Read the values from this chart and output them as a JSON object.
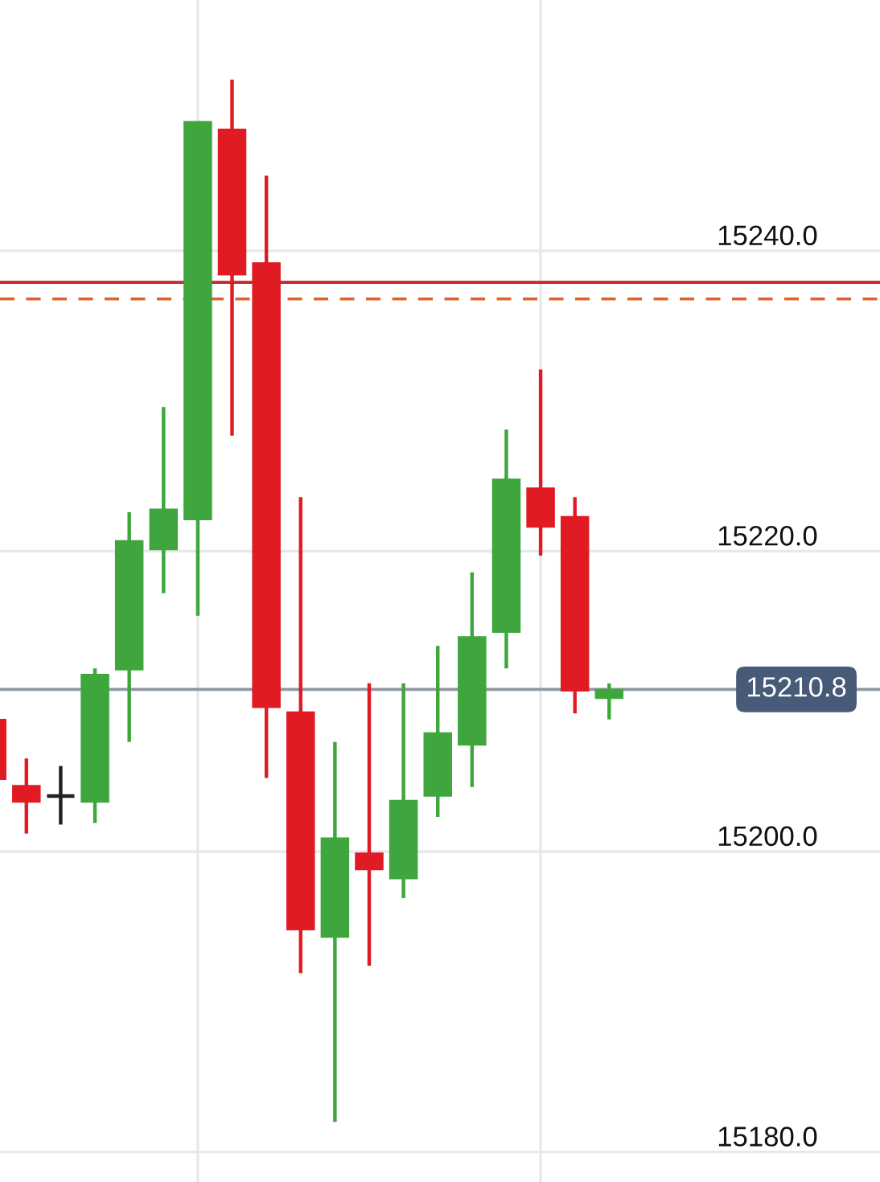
{
  "chart_data": {
    "type": "candlestick",
    "categories": [
      null,
      null,
      null,
      null,
      null,
      null,
      null,
      null,
      null,
      null,
      null,
      null,
      null,
      null,
      null,
      null,
      null,
      null,
      null
    ],
    "ohlc": [
      [
        15208.8,
        15208.8,
        15204.8,
        15204.8
      ],
      [
        15204.4,
        15206.2,
        15201.2,
        15203.3
      ],
      [
        15203.7,
        15205.7,
        15201.8,
        15203.7
      ],
      [
        15203.3,
        15212.2,
        15201.9,
        15211.8
      ],
      [
        15212.1,
        15222.6,
        15207.3,
        15220.7
      ],
      [
        15220.1,
        15229.6,
        15217.2,
        15222.8
      ],
      [
        15222.1,
        15248.6,
        15215.7,
        15248.6
      ],
      [
        15248.1,
        15251.4,
        15227.7,
        15238.4
      ],
      [
        15239.2,
        15245.0,
        15204.9,
        15209.6
      ],
      [
        15209.3,
        15223.6,
        15191.9,
        15194.8
      ],
      [
        15194.3,
        15207.3,
        15182.0,
        15200.9
      ],
      [
        15199.9,
        15211.2,
        15192.4,
        15198.8
      ],
      [
        15198.2,
        15211.2,
        15196.9,
        15203.4
      ],
      [
        15203.7,
        15213.7,
        15202.3,
        15207.9
      ],
      [
        15207.1,
        15218.6,
        15204.3,
        15214.3
      ],
      [
        15214.6,
        15228.1,
        15212.2,
        15224.8
      ],
      [
        15224.2,
        15232.1,
        15219.7,
        15221.6
      ],
      [
        15222.3,
        15223.6,
        15209.2,
        15210.7
      ],
      [
        15210.2,
        15211.2,
        15208.8,
        15210.8
      ]
    ],
    "colors": [
      "#e01b24",
      "#e01b24",
      "#222222",
      "#3ea63c",
      "#3ea63c",
      "#3ea63c",
      "#3ea63c",
      "#e01b24",
      "#e01b24",
      "#e01b24",
      "#3ea63c",
      "#e01b24",
      "#3ea63c",
      "#3ea63c",
      "#3ea63c",
      "#3ea63c",
      "#e01b24",
      "#e01b24",
      "#3ea63c"
    ],
    "ylim": [
      15178,
      15256.7
    ],
    "yticks": [
      {
        "value": 15240,
        "label": "15240.0"
      },
      {
        "value": 15220,
        "label": "15220.0"
      },
      {
        "value": 15200,
        "label": "15200.0"
      },
      {
        "value": 15180,
        "label": "15180.0"
      }
    ],
    "grid": true,
    "ref_lines": [
      {
        "axis": "y",
        "value": 15210.8,
        "label": "15210.8",
        "color": "#8e97a3"
      },
      {
        "axis": "y",
        "value": 15237.9,
        "color": "#c0282d",
        "line_style": "solid"
      },
      {
        "axis": "y",
        "value": 15236.8,
        "color": "#e2622b",
        "line_style": "dashed"
      }
    ]
  }
}
